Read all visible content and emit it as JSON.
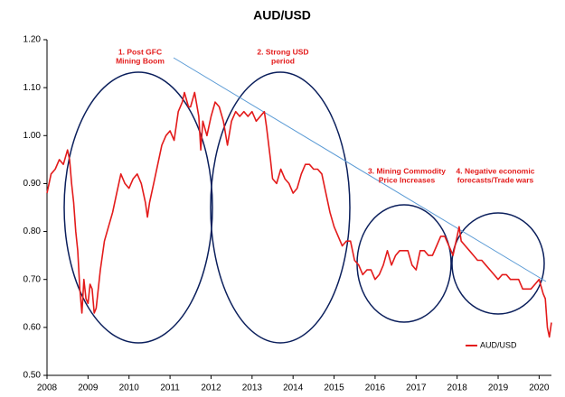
{
  "chart_data": {
    "type": "line",
    "title": "AUD/USD",
    "x": [
      2008.0,
      2008.1,
      2008.2,
      2008.3,
      2008.4,
      2008.5,
      2008.55,
      2008.6,
      2008.65,
      2008.7,
      2008.75,
      2008.8,
      2008.85,
      2008.9,
      2008.95,
      2009.0,
      2009.05,
      2009.1,
      2009.15,
      2009.2,
      2009.3,
      2009.4,
      2009.5,
      2009.6,
      2009.7,
      2009.8,
      2009.9,
      2010.0,
      2010.1,
      2010.2,
      2010.3,
      2010.4,
      2010.45,
      2010.5,
      2010.6,
      2010.7,
      2010.8,
      2010.9,
      2011.0,
      2011.1,
      2011.2,
      2011.3,
      2011.35,
      2011.45,
      2011.5,
      2011.6,
      2011.7,
      2011.75,
      2011.8,
      2011.9,
      2012.0,
      2012.1,
      2012.2,
      2012.3,
      2012.4,
      2012.5,
      2012.6,
      2012.7,
      2012.8,
      2012.9,
      2013.0,
      2013.1,
      2013.2,
      2013.3,
      2013.35,
      2013.45,
      2013.5,
      2013.6,
      2013.7,
      2013.8,
      2013.9,
      2014.0,
      2014.1,
      2014.2,
      2014.3,
      2014.4,
      2014.5,
      2014.6,
      2014.7,
      2014.8,
      2014.9,
      2015.0,
      2015.1,
      2015.2,
      2015.3,
      2015.4,
      2015.5,
      2015.6,
      2015.7,
      2015.8,
      2015.9,
      2016.0,
      2016.1,
      2016.2,
      2016.3,
      2016.4,
      2016.5,
      2016.6,
      2016.7,
      2016.8,
      2016.9,
      2017.0,
      2017.1,
      2017.2,
      2017.3,
      2017.4,
      2017.5,
      2017.6,
      2017.7,
      2017.8,
      2017.9,
      2018.0,
      2018.05,
      2018.1,
      2018.2,
      2018.3,
      2018.4,
      2018.5,
      2018.6,
      2018.7,
      2018.8,
      2018.9,
      2019.0,
      2019.1,
      2019.2,
      2019.3,
      2019.4,
      2019.5,
      2019.6,
      2019.7,
      2019.8,
      2019.9,
      2020.0,
      2020.1,
      2020.15,
      2020.2,
      2020.25,
      2020.3
    ],
    "series": [
      {
        "name": "AUD/USD",
        "color": "#e31b1b",
        "values": [
          0.88,
          0.92,
          0.93,
          0.95,
          0.94,
          0.97,
          0.95,
          0.9,
          0.86,
          0.8,
          0.76,
          0.68,
          0.63,
          0.7,
          0.66,
          0.65,
          0.69,
          0.68,
          0.63,
          0.64,
          0.72,
          0.78,
          0.81,
          0.84,
          0.88,
          0.92,
          0.9,
          0.89,
          0.91,
          0.92,
          0.9,
          0.86,
          0.83,
          0.86,
          0.9,
          0.94,
          0.98,
          1.0,
          1.01,
          0.99,
          1.05,
          1.07,
          1.09,
          1.06,
          1.06,
          1.09,
          1.04,
          0.97,
          1.03,
          1.0,
          1.04,
          1.07,
          1.06,
          1.03,
          0.98,
          1.03,
          1.05,
          1.04,
          1.05,
          1.04,
          1.05,
          1.03,
          1.04,
          1.05,
          1.02,
          0.95,
          0.91,
          0.9,
          0.93,
          0.91,
          0.9,
          0.88,
          0.89,
          0.92,
          0.94,
          0.94,
          0.93,
          0.93,
          0.92,
          0.88,
          0.84,
          0.81,
          0.79,
          0.77,
          0.78,
          0.78,
          0.74,
          0.73,
          0.71,
          0.72,
          0.72,
          0.7,
          0.71,
          0.73,
          0.76,
          0.73,
          0.75,
          0.76,
          0.76,
          0.76,
          0.73,
          0.72,
          0.76,
          0.76,
          0.75,
          0.75,
          0.77,
          0.79,
          0.79,
          0.77,
          0.75,
          0.79,
          0.81,
          0.78,
          0.77,
          0.76,
          0.75,
          0.74,
          0.74,
          0.73,
          0.72,
          0.71,
          0.7,
          0.71,
          0.71,
          0.7,
          0.7,
          0.7,
          0.68,
          0.68,
          0.68,
          0.69,
          0.7,
          0.67,
          0.66,
          0.6,
          0.58,
          0.61
        ]
      }
    ],
    "xlim": [
      2008,
      2020.3
    ],
    "xticks": [
      2008,
      2009,
      2010,
      2011,
      2012,
      2013,
      2014,
      2015,
      2016,
      2017,
      2018,
      2019,
      2020
    ],
    "ylim": [
      0.5,
      1.2
    ],
    "yticks": [
      {
        "value": 0.5,
        "label": "0.50"
      },
      {
        "value": 0.6,
        "label": "0.60"
      },
      {
        "value": 0.7,
        "label": "0.70"
      },
      {
        "value": 0.8,
        "label": "0.80"
      },
      {
        "value": 0.9,
        "label": "0.90"
      },
      {
        "value": 1.0,
        "label": "1.00"
      },
      {
        "value": 1.1,
        "label": "1.10"
      },
      {
        "value": 1.2,
        "label": "1.20"
      }
    ],
    "legend": "lower right",
    "annotations": [
      [
        "1. Post GFC",
        "Mining Boom"
      ],
      [
        "2. Strong USD",
        "period"
      ],
      [
        "3. Mining Commodity",
        "Price Increases"
      ],
      [
        "4. Negative economic",
        "forecasts/Trade wars"
      ]
    ]
  }
}
